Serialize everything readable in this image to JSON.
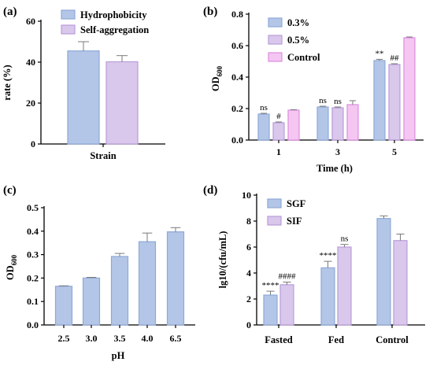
{
  "colors": {
    "blue_fill": "#b4c6e7",
    "blue_edge": "#8ea9d8",
    "purple_fill": "#d9c7ec",
    "purple_edge": "#b99ed9",
    "pink_fill": "#f4c6f1",
    "pink_edge": "#dd8ede",
    "error_bar": "#7a7a7a"
  },
  "chart_data": [
    {
      "panel": "(a)",
      "type": "bar",
      "ylabel": "rate (%)",
      "xlabel": "Strain",
      "ylim": [
        0,
        60
      ],
      "yticks": [
        "0",
        "20",
        "40",
        "60"
      ],
      "legend_position": "top",
      "series": [
        {
          "name": "Hydrophobicity",
          "value": 45.5,
          "error": 4.5,
          "color": "blue"
        },
        {
          "name": "Self-aggregation",
          "value": 40.2,
          "error": 3.0,
          "color": "purple"
        }
      ]
    },
    {
      "panel": "(b)",
      "type": "bar",
      "ylabel_main": "OD",
      "ylabel_sub": "600",
      "xlabel": "Time (h)",
      "categories": [
        "1",
        "3",
        "5"
      ],
      "ylim": [
        0,
        0.8
      ],
      "yticks": [
        "0.0",
        "0.2",
        "0.4",
        "0.6",
        "0.8"
      ],
      "legend_position": "top-left",
      "series": [
        {
          "name": "0.3%",
          "color": "blue",
          "values": [
            0.165,
            0.21,
            0.505
          ],
          "errors": [
            0.005,
            0.005,
            0.008
          ],
          "annotations": [
            "ns",
            "ns",
            "**"
          ]
        },
        {
          "name": "0.5%",
          "color": "purple",
          "values": [
            0.11,
            0.205,
            0.48
          ],
          "errors": [
            0.005,
            0.005,
            0.005
          ],
          "annotations": [
            "#",
            "ns",
            "##"
          ]
        },
        {
          "name": "Control",
          "color": "pink",
          "values": [
            0.19,
            0.225,
            0.65
          ],
          "errors": [
            0.003,
            0.025,
            0.005
          ],
          "annotations": [
            "",
            "",
            ""
          ]
        }
      ]
    },
    {
      "panel": "(c)",
      "type": "bar",
      "ylabel_main": "OD",
      "ylabel_sub": "600",
      "xlabel": "pH",
      "categories": [
        "2.5",
        "3.0",
        "3.5",
        "4.0",
        "6.5"
      ],
      "ylim": [
        0,
        0.5
      ],
      "yticks": [
        "0.0",
        "0.1",
        "0.2",
        "0.3",
        "0.4",
        "0.5"
      ],
      "series": [
        {
          "name": "",
          "color": "blue",
          "values": [
            0.165,
            0.2,
            0.292,
            0.355,
            0.397
          ],
          "errors": [
            0.002,
            0.003,
            0.013,
            0.037,
            0.018
          ]
        }
      ]
    },
    {
      "panel": "(d)",
      "type": "bar",
      "ylabel": "lg10/(cfu/mL)",
      "xlabel": "",
      "categories": [
        "Fasted",
        "Fed",
        "Control"
      ],
      "ylim": [
        0,
        10
      ],
      "yticks": [
        "0",
        "2",
        "4",
        "6",
        "8",
        "10"
      ],
      "legend_position": "top-left",
      "series": [
        {
          "name": "SGF",
          "color": "blue",
          "values": [
            2.3,
            4.4,
            8.2
          ],
          "errors": [
            0.3,
            0.5,
            0.2
          ],
          "annotations": [
            "****",
            "****",
            ""
          ]
        },
        {
          "name": "SIF",
          "color": "purple",
          "values": [
            3.1,
            6.0,
            6.5
          ],
          "errors": [
            0.2,
            0.2,
            0.5
          ],
          "annotations": [
            "####",
            "ns",
            ""
          ]
        }
      ]
    }
  ]
}
